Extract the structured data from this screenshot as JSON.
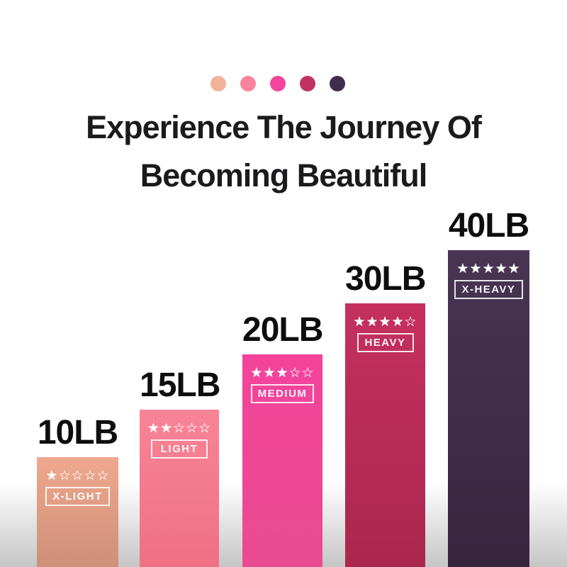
{
  "header": {
    "title_line1": "Experience The Journey Of",
    "title_line2": "Becoming Beautiful",
    "palette_dots": [
      {
        "name": "x-light-dot",
        "color": "#f2b299"
      },
      {
        "name": "light-dot",
        "color": "#f9849b"
      },
      {
        "name": "medium-dot",
        "color": "#f4459c"
      },
      {
        "name": "heavy-dot",
        "color": "#c23261"
      },
      {
        "name": "x-heavy-dot",
        "color": "#3f2d4e"
      }
    ]
  },
  "chart_data": {
    "type": "bar",
    "title": "Experience The Journey Of Becoming Beautiful",
    "categories": [
      "X-LIGHT",
      "LIGHT",
      "MEDIUM",
      "HEAVY",
      "X-HEAVY"
    ],
    "values": [
      10,
      15,
      20,
      30,
      40
    ],
    "unit": "LB",
    "value_labels": [
      "10LB",
      "15LB",
      "20LB",
      "30LB",
      "40LB"
    ],
    "star_ratings": [
      1,
      2,
      3,
      4,
      5
    ],
    "max_stars": 5,
    "grid": false,
    "legend_position": "none",
    "ylim": [
      0,
      40
    ],
    "bars": [
      {
        "weight_label": "10LB",
        "level": "X-LIGHT",
        "rating": 1,
        "stars": "★☆☆☆☆",
        "color_top": "#efa88e",
        "color_bottom": "#ce9078"
      },
      {
        "weight_label": "15LB",
        "level": "LIGHT",
        "rating": 2,
        "stars": "★★☆☆☆",
        "color_top": "#f98497",
        "color_bottom": "#ee7183"
      },
      {
        "weight_label": "20LB",
        "level": "MEDIUM",
        "rating": 3,
        "stars": "★★★☆☆",
        "color_top": "#f3439b",
        "color_bottom": "#e94b92"
      },
      {
        "weight_label": "30LB",
        "level": "HEAVY",
        "rating": 4,
        "stars": "★★★★☆",
        "color_top": "#c5305f",
        "color_bottom": "#aa2750"
      },
      {
        "weight_label": "40LB",
        "level": "X-HEAVY",
        "rating": 5,
        "stars": "★★★★★",
        "color_top": "#473553",
        "color_bottom": "#372540"
      }
    ]
  }
}
